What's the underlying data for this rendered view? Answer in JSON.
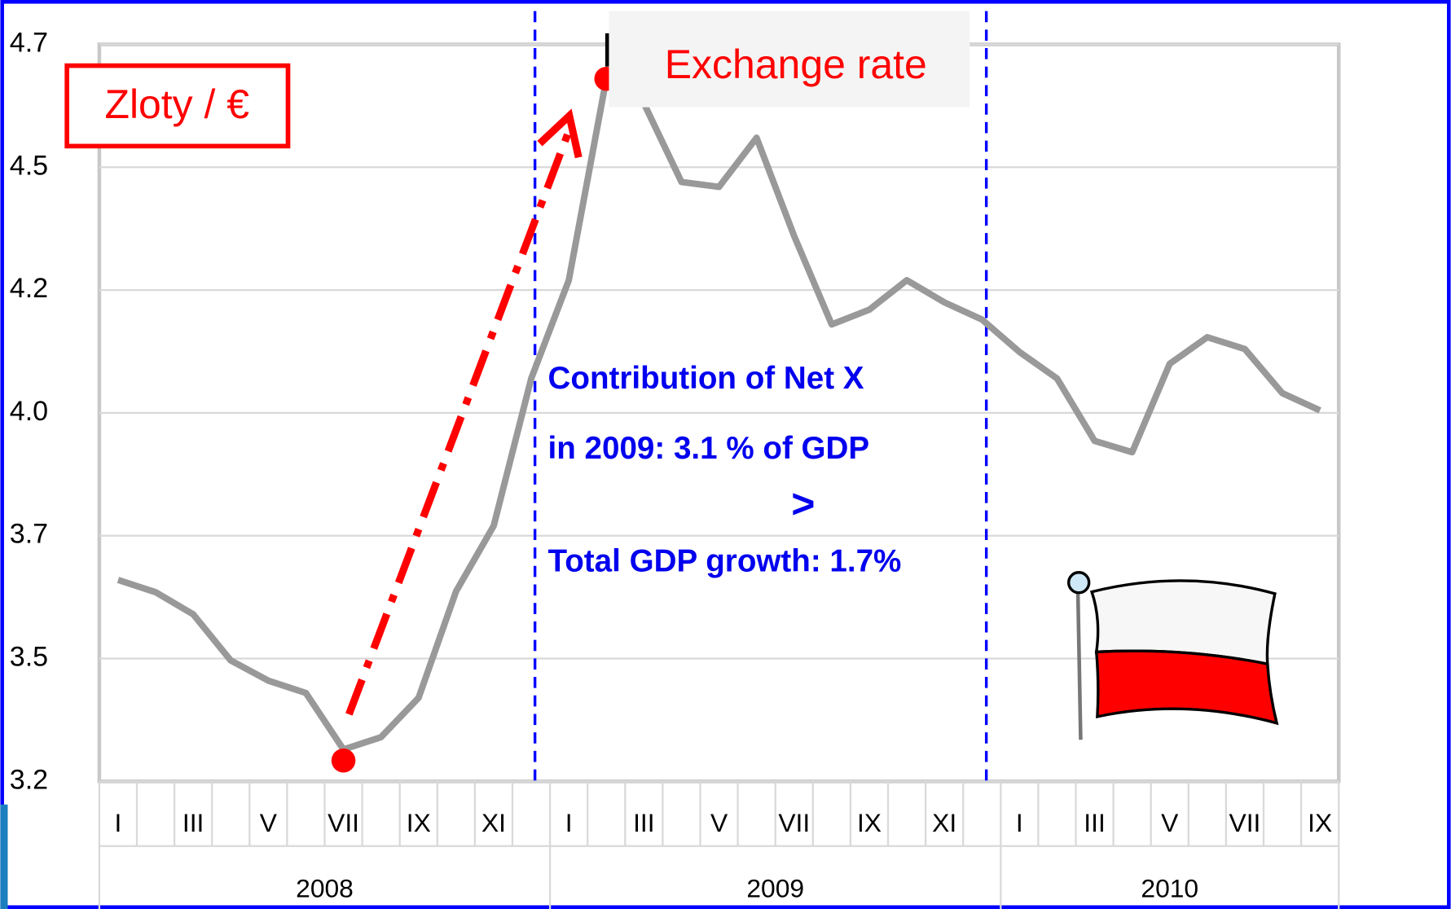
{
  "chart_data": {
    "type": "line",
    "categories": [
      "I",
      null,
      "III",
      null,
      "V",
      null,
      "VII",
      null,
      "IX",
      null,
      "XI",
      null,
      "I",
      null,
      "III",
      null,
      "V",
      null,
      "VII",
      null,
      "IX",
      null,
      "XI",
      null,
      "I",
      null,
      "III",
      null,
      "V",
      null,
      "VII",
      null,
      "IX"
    ],
    "years": [
      "2008",
      "2009",
      "2010"
    ],
    "series": [
      {
        "color": "#999999",
        "values": [
          3.66,
          3.635,
          3.59,
          3.496,
          3.455,
          3.43,
          3.315,
          3.34,
          3.42,
          3.637,
          3.77,
          4.07,
          4.27,
          4.68,
          4.63,
          4.47,
          4.46,
          4.56,
          4.36,
          4.18,
          4.21,
          4.27,
          4.225,
          4.19,
          4.124,
          4.07,
          3.943,
          3.92,
          4.1,
          4.154,
          4.13,
          4.04,
          4.005
        ]
      }
    ],
    "ylim": [
      3.25,
      4.75
    ],
    "yticks": [
      {
        "value": 3.25,
        "label": "3.2"
      },
      {
        "value": 3.5,
        "label": "3.5"
      },
      {
        "value": 3.75,
        "label": "3.7"
      },
      {
        "value": 4.0,
        "label": "4.0"
      },
      {
        "value": 4.25,
        "label": "4.2"
      },
      {
        "value": 4.5,
        "label": "4.5"
      },
      {
        "value": 4.75,
        "label": "4.7"
      }
    ],
    "grid": true,
    "unit_label": "Zloty / €",
    "series_label": "Exchange rate",
    "annotations": [
      "Contribution of Net  X",
      "in 2009:   3.1 % of GDP",
      ">",
      "Total GDP growth: 1.7%"
    ]
  }
}
